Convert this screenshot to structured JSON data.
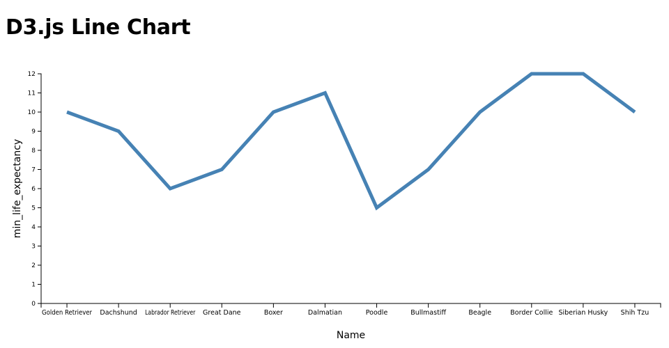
{
  "chart_data": {
    "type": "line",
    "title": "D3.js Line Chart",
    "xlabel": "Name",
    "ylabel": "min_life_expectancy",
    "categories": [
      "Golden Retriever",
      "Dachshund",
      "Labrador Retriever",
      "Great Dane",
      "Boxer",
      "Dalmatian",
      "Poodle",
      "Bullmastiff",
      "Beagle",
      "Border Collie",
      "Siberian Husky",
      "Shih Tzu"
    ],
    "values": [
      10,
      9,
      6,
      7,
      10,
      11,
      5,
      7,
      10,
      12,
      12,
      10
    ],
    "ylim": [
      0,
      12
    ],
    "yticks": [
      0,
      1,
      2,
      3,
      4,
      5,
      6,
      7,
      8,
      9,
      10,
      11,
      12
    ],
    "grid": false,
    "line_color": "#4682b4"
  }
}
